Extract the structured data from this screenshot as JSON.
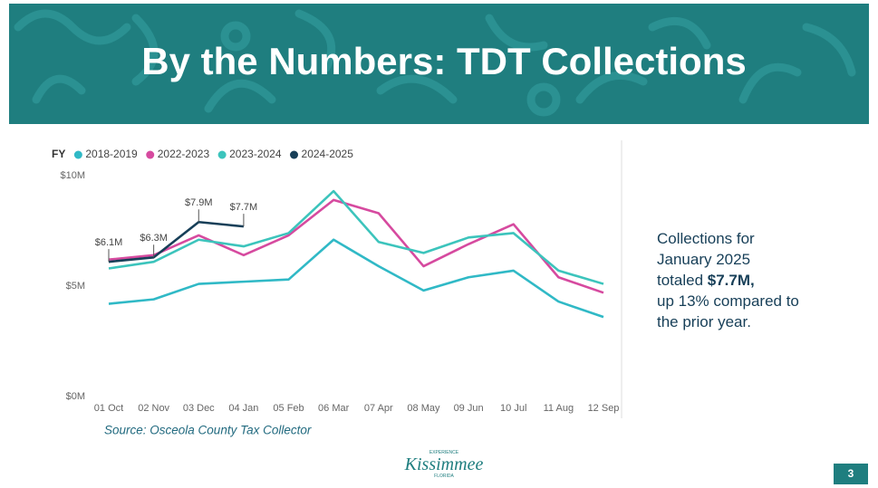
{
  "header": {
    "title": "By the Numbers: TDT Collections"
  },
  "chart_data": {
    "type": "line",
    "legend_title": "FY",
    "categories": [
      "01 Oct",
      "02 Nov",
      "03 Dec",
      "04 Jan",
      "05 Feb",
      "06 Mar",
      "07 Apr",
      "08 May",
      "09 Jun",
      "10 Jul",
      "11 Aug",
      "12 Sep"
    ],
    "series": [
      {
        "name": "2018-2019",
        "color": "#30b9c6",
        "values": [
          4.2,
          4.4,
          5.1,
          5.2,
          5.3,
          7.1,
          5.9,
          4.8,
          5.4,
          5.7,
          4.3,
          3.6
        ]
      },
      {
        "name": "2022-2023",
        "color": "#d64a9f",
        "values": [
          6.2,
          6.4,
          7.3,
          6.4,
          7.3,
          8.9,
          8.3,
          5.9,
          6.9,
          7.8,
          5.4,
          4.7
        ]
      },
      {
        "name": "2023-2024",
        "color": "#3cc4bc",
        "values": [
          5.8,
          6.1,
          7.1,
          6.8,
          7.4,
          9.3,
          7.0,
          6.5,
          7.2,
          7.4,
          5.7,
          5.1
        ]
      },
      {
        "name": "2024-2025",
        "color": "#173f58",
        "values": [
          6.1,
          6.3,
          7.9,
          7.7,
          null,
          null,
          null,
          null,
          null,
          null,
          null,
          null
        ],
        "value_labels": [
          "$6.1M",
          "$6.3M",
          "$7.9M",
          "$7.7M",
          null,
          null,
          null,
          null,
          null,
          null,
          null,
          null
        ]
      }
    ],
    "ylim": [
      0,
      10
    ],
    "yticks": [
      {
        "value": 0,
        "label": "$0M"
      },
      {
        "value": 5,
        "label": "$5M"
      },
      {
        "value": 10,
        "label": "$10M"
      }
    ],
    "grid": false,
    "legend": "top-left",
    "source": "Source: Osceola County Tax Collector"
  },
  "callout": [
    "Collections for",
    "January 2025",
    "totaled ",
    "$7.7M,",
    "up 13% compared to",
    "the prior year."
  ],
  "footer": {
    "logo": "Kissimmee",
    "logo_top": "EXPERIENCE",
    "logo_bottom": "FLORIDA",
    "page": "3"
  }
}
